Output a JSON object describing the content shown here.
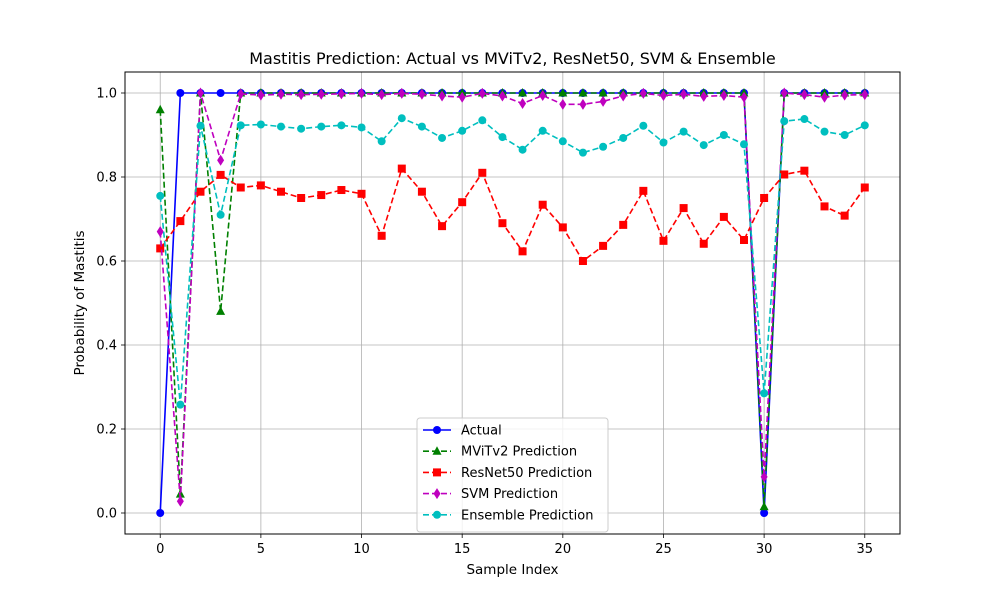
{
  "chart_data": {
    "type": "line",
    "title": "Mastitis Prediction: Actual vs MViTv2, ResNet50, SVM & Ensemble",
    "xlabel": "Sample Index",
    "ylabel": "Probability of Mastitis",
    "xlim": [
      -1.75,
      36.75
    ],
    "ylim": [
      -0.05,
      1.05
    ],
    "xticks": [
      0,
      5,
      10,
      15,
      20,
      25,
      30,
      35
    ],
    "yticks": [
      0.0,
      0.2,
      0.4,
      0.6,
      0.8,
      1.0
    ],
    "grid": true,
    "legend_position": "lower center",
    "x": [
      0,
      1,
      2,
      3,
      4,
      5,
      6,
      7,
      8,
      9,
      10,
      11,
      12,
      13,
      14,
      15,
      16,
      17,
      18,
      19,
      20,
      21,
      22,
      23,
      24,
      25,
      26,
      27,
      28,
      29,
      30,
      31,
      32,
      33,
      34,
      35
    ],
    "series": [
      {
        "name": "Actual",
        "color": "#0000ff",
        "marker": "circle",
        "linestyle": "solid",
        "values": [
          0,
          1,
          1,
          1,
          1,
          1,
          1,
          1,
          1,
          1,
          1,
          1,
          1,
          1,
          1,
          1,
          1,
          1,
          1,
          1,
          1,
          1,
          1,
          1,
          1,
          1,
          1,
          1,
          1,
          1,
          0,
          1,
          1,
          1,
          1,
          1
        ]
      },
      {
        "name": "MViTv2 Prediction",
        "color": "#008000",
        "marker": "triangle",
        "linestyle": "dashed",
        "values": [
          0.96,
          0.045,
          1.0,
          0.48,
          1.0,
          1.0,
          1.0,
          1.0,
          1.0,
          1.0,
          1.0,
          1.0,
          1.0,
          1.0,
          1.0,
          1.0,
          1.0,
          1.0,
          1.0,
          1.0,
          1.0,
          1.0,
          1.0,
          1.0,
          1.0,
          1.0,
          1.0,
          1.0,
          1.0,
          1.0,
          0.015,
          1.0,
          1.0,
          1.0,
          1.0,
          1.0
        ]
      },
      {
        "name": "ResNet50 Prediction",
        "color": "#ff0000",
        "marker": "square",
        "linestyle": "dashed",
        "values": [
          0.63,
          0.695,
          0.765,
          0.805,
          0.775,
          0.78,
          0.765,
          0.75,
          0.757,
          0.769,
          0.76,
          0.66,
          0.82,
          0.765,
          0.683,
          0.74,
          0.81,
          0.69,
          0.623,
          0.734,
          0.68,
          0.6,
          0.636,
          0.686,
          0.767,
          0.648,
          0.726,
          0.641,
          0.705,
          0.65,
          0.75,
          0.806,
          0.815,
          0.73,
          0.708,
          0.775
        ]
      },
      {
        "name": "SVM Prediction",
        "color": "#bf00bf",
        "marker": "diamond",
        "linestyle": "dashed",
        "values": [
          0.67,
          0.028,
          1.0,
          0.84,
          0.998,
          0.995,
          0.997,
          0.996,
          0.997,
          0.998,
          0.999,
          0.996,
          0.999,
          0.997,
          0.993,
          0.99,
          0.999,
          0.993,
          0.975,
          0.994,
          0.973,
          0.973,
          0.98,
          0.993,
          0.999,
          0.994,
          0.997,
          0.992,
          0.994,
          0.99,
          0.086,
          1.0,
          0.996,
          0.99,
          0.995,
          0.996
        ]
      },
      {
        "name": "Ensemble Prediction",
        "color": "#00bfbf",
        "marker": "circle",
        "linestyle": "dashed",
        "values": [
          0.755,
          0.258,
          0.922,
          0.71,
          0.923,
          0.925,
          0.92,
          0.915,
          0.92,
          0.923,
          0.918,
          0.885,
          0.94,
          0.92,
          0.893,
          0.91,
          0.935,
          0.895,
          0.865,
          0.91,
          0.885,
          0.858,
          0.872,
          0.893,
          0.922,
          0.882,
          0.908,
          0.876,
          0.9,
          0.878,
          0.285,
          0.933,
          0.938,
          0.908,
          0.9,
          0.923
        ]
      }
    ]
  }
}
